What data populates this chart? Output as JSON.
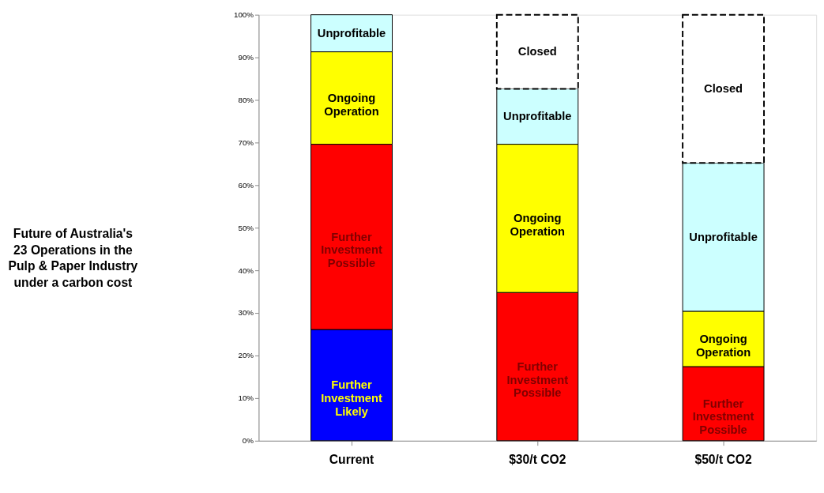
{
  "chart_data": {
    "type": "bar",
    "stacked": true,
    "title": "Future of Australia's 23 Operations in the Pulp & Paper Industry under a carbon cost",
    "categories": [
      "Current",
      "$30/t CO2",
      "$50/t CO2"
    ],
    "series": [
      {
        "name": "Further Investment Likely",
        "color": "#0000ff",
        "values": [
          26.1,
          null,
          null
        ]
      },
      {
        "name": "Further Investment Possible",
        "color": "#ff0000",
        "values": [
          43.5,
          34.8,
          17.4
        ]
      },
      {
        "name": "Ongoing Operation",
        "color": "#ffff00",
        "values": [
          21.7,
          34.8,
          13.0
        ]
      },
      {
        "name": "Unprofitable",
        "color": "#ccffff",
        "values": [
          8.7,
          13.0,
          34.8
        ]
      },
      {
        "name": "Closed",
        "color": "#ffffff",
        "line_style": "dashed",
        "values": [
          null,
          17.4,
          34.8
        ]
      }
    ],
    "ylim": [
      0,
      100
    ],
    "yticks": [
      {
        "value": 0,
        "label": "0%"
      },
      {
        "value": 10,
        "label": "10%"
      },
      {
        "value": 20,
        "label": "20%"
      },
      {
        "value": 30,
        "label": "30%"
      },
      {
        "value": 40,
        "label": "40%"
      },
      {
        "value": 50,
        "label": "50%"
      },
      {
        "value": 60,
        "label": "60%"
      },
      {
        "value": 70,
        "label": "70%"
      },
      {
        "value": 80,
        "label": "80%"
      },
      {
        "value": 90,
        "label": "90%"
      },
      {
        "value": 100,
        "label": "100%"
      }
    ],
    "grid": false
  }
}
